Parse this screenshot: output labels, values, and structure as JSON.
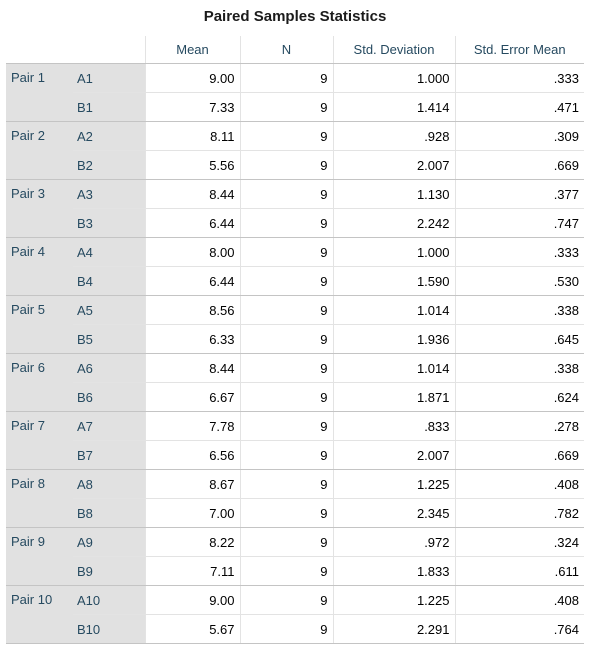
{
  "title": "Paired Samples Statistics",
  "headers": [
    "Mean",
    "N",
    "Std. Deviation",
    "Std. Error Mean"
  ],
  "pairs": [
    {
      "label": "Pair 1",
      "rows": [
        {
          "var": "A1",
          "mean": "9.00",
          "n": "9",
          "sd": "1.000",
          "se": ".333"
        },
        {
          "var": "B1",
          "mean": "7.33",
          "n": "9",
          "sd": "1.414",
          "se": ".471"
        }
      ]
    },
    {
      "label": "Pair 2",
      "rows": [
        {
          "var": "A2",
          "mean": "8.11",
          "n": "9",
          "sd": ".928",
          "se": ".309"
        },
        {
          "var": "B2",
          "mean": "5.56",
          "n": "9",
          "sd": "2.007",
          "se": ".669"
        }
      ]
    },
    {
      "label": "Pair 3",
      "rows": [
        {
          "var": "A3",
          "mean": "8.44",
          "n": "9",
          "sd": "1.130",
          "se": ".377"
        },
        {
          "var": "B3",
          "mean": "6.44",
          "n": "9",
          "sd": "2.242",
          "se": ".747"
        }
      ]
    },
    {
      "label": "Pair 4",
      "rows": [
        {
          "var": "A4",
          "mean": "8.00",
          "n": "9",
          "sd": "1.000",
          "se": ".333"
        },
        {
          "var": "B4",
          "mean": "6.44",
          "n": "9",
          "sd": "1.590",
          "se": ".530"
        }
      ]
    },
    {
      "label": "Pair 5",
      "rows": [
        {
          "var": "A5",
          "mean": "8.56",
          "n": "9",
          "sd": "1.014",
          "se": ".338"
        },
        {
          "var": "B5",
          "mean": "6.33",
          "n": "9",
          "sd": "1.936",
          "se": ".645"
        }
      ]
    },
    {
      "label": "Pair 6",
      "rows": [
        {
          "var": "A6",
          "mean": "8.44",
          "n": "9",
          "sd": "1.014",
          "se": ".338"
        },
        {
          "var": "B6",
          "mean": "6.67",
          "n": "9",
          "sd": "1.871",
          "se": ".624"
        }
      ]
    },
    {
      "label": "Pair 7",
      "rows": [
        {
          "var": "A7",
          "mean": "7.78",
          "n": "9",
          "sd": ".833",
          "se": ".278"
        },
        {
          "var": "B7",
          "mean": "6.56",
          "n": "9",
          "sd": "2.007",
          "se": ".669"
        }
      ]
    },
    {
      "label": "Pair 8",
      "rows": [
        {
          "var": "A8",
          "mean": "8.67",
          "n": "9",
          "sd": "1.225",
          "se": ".408"
        },
        {
          "var": "B8",
          "mean": "7.00",
          "n": "9",
          "sd": "2.345",
          "se": ".782"
        }
      ]
    },
    {
      "label": "Pair 9",
      "rows": [
        {
          "var": "A9",
          "mean": "8.22",
          "n": "9",
          "sd": ".972",
          "se": ".324"
        },
        {
          "var": "B9",
          "mean": "7.11",
          "n": "9",
          "sd": "1.833",
          "se": ".611"
        }
      ]
    },
    {
      "label": "Pair 10",
      "rows": [
        {
          "var": "A10",
          "mean": "9.00",
          "n": "9",
          "sd": "1.225",
          "se": ".408"
        },
        {
          "var": "B10",
          "mean": "5.67",
          "n": "9",
          "sd": "2.291",
          "se": ".764"
        }
      ]
    }
  ],
  "colors": {
    "label_text": "#264a60",
    "label_bg": "#e1e1e1",
    "grid": "#c4c4c4"
  }
}
